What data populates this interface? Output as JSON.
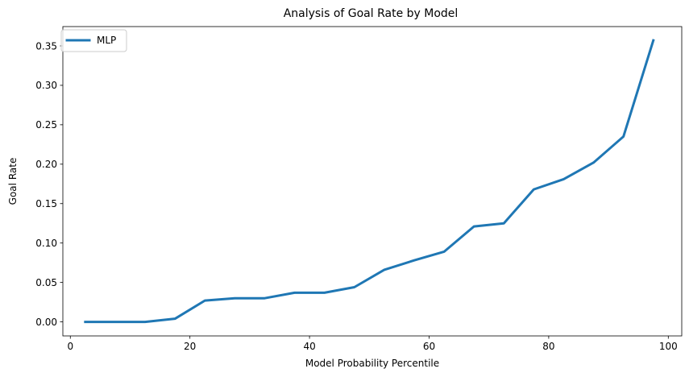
{
  "chart_data": {
    "type": "line",
    "title": "Analysis of Goal Rate by Model",
    "xlabel": "Model Probability Percentile",
    "ylabel": "Goal Rate",
    "xlim": [
      -1.25,
      102.25
    ],
    "ylim": [
      -0.0178,
      0.3745
    ],
    "xticks": [
      0,
      20,
      40,
      60,
      80,
      100
    ],
    "yticks": [
      0.0,
      0.05,
      0.1,
      0.15,
      0.2,
      0.25,
      0.3,
      0.35
    ],
    "grid": false,
    "legend_position": "upper-left",
    "series": [
      {
        "name": "MLP",
        "color": "#1f77b4",
        "x": [
          2.5,
          7.5,
          12.5,
          17.5,
          22.5,
          27.5,
          32.5,
          37.5,
          42.5,
          47.5,
          52.5,
          57.5,
          62.5,
          67.5,
          72.5,
          77.5,
          82.5,
          87.5,
          92.5,
          97.5
        ],
        "y": [
          0.0,
          0.0,
          0.0,
          0.004,
          0.027,
          0.03,
          0.03,
          0.037,
          0.037,
          0.044,
          0.066,
          0.078,
          0.089,
          0.121,
          0.125,
          0.168,
          0.181,
          0.202,
          0.235,
          0.357
        ]
      }
    ]
  }
}
